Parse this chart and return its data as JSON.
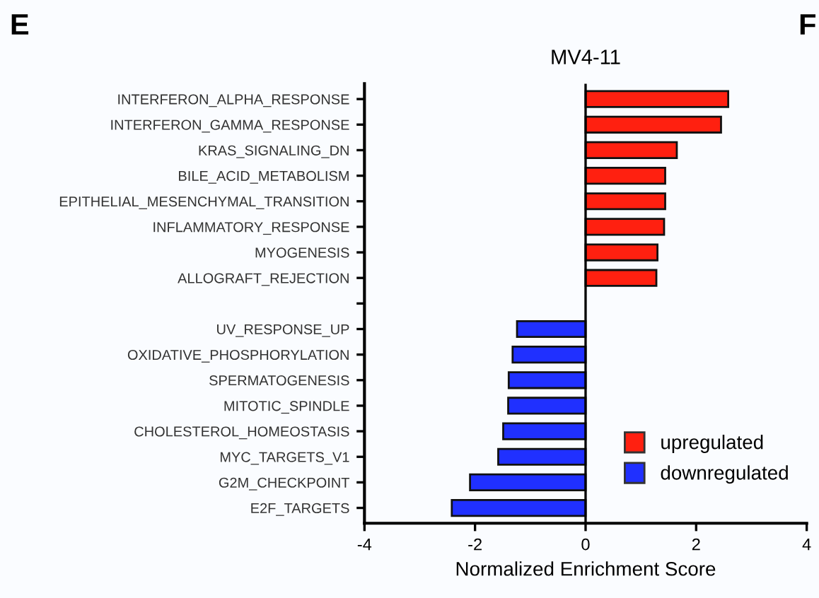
{
  "chart_data": {
    "type": "bar",
    "orientation": "horizontal",
    "title": "MV4-11",
    "xlabel": "Normalized Enrichment Score",
    "categories": [
      "INTERFERON_ALPHA_RESPONSE",
      "INTERFERON_GAMMA_RESPONSE",
      "KRAS_SIGNALING_DN",
      "BILE_ACID_METABOLISM",
      "EPITHELIAL_MESENCHYMAL_TRANSITION",
      "INFLAMMATORY_RESPONSE",
      "MYOGENESIS",
      "ALLOGRAFT_REJECTION",
      null,
      "UV_RESPONSE_UP",
      "OXIDATIVE_PHOSPHORYLATION",
      "SPERMATOGENESIS",
      "MITOTIC_SPINDLE",
      "CHOLESTEROL_HOMEOSTASIS",
      "MYC_TARGETS_V1",
      "G2M_CHECKPOINT",
      "E2F_TARGETS"
    ],
    "series": [
      {
        "name": "upregulated",
        "color": "#ff2010",
        "values": [
          2.58,
          2.45,
          1.65,
          1.44,
          1.44,
          1.42,
          1.3,
          1.28,
          null,
          null,
          null,
          null,
          null,
          null,
          null,
          null,
          null
        ]
      },
      {
        "name": "downregulated",
        "color": "#2030ff",
        "values": [
          null,
          null,
          null,
          null,
          null,
          null,
          null,
          null,
          null,
          -1.24,
          -1.32,
          -1.39,
          -1.4,
          -1.49,
          -1.58,
          -2.09,
          -2.42
        ]
      }
    ],
    "xlim": [
      -4,
      4
    ],
    "xticks": [
      -4,
      -2,
      0,
      2,
      4
    ],
    "ref_lines": [
      {
        "axis": "x",
        "value": 0,
        "color": "#000000"
      }
    ],
    "legend": "bottom right",
    "grid": false,
    "annotations": [
      "E",
      "F"
    ]
  }
}
